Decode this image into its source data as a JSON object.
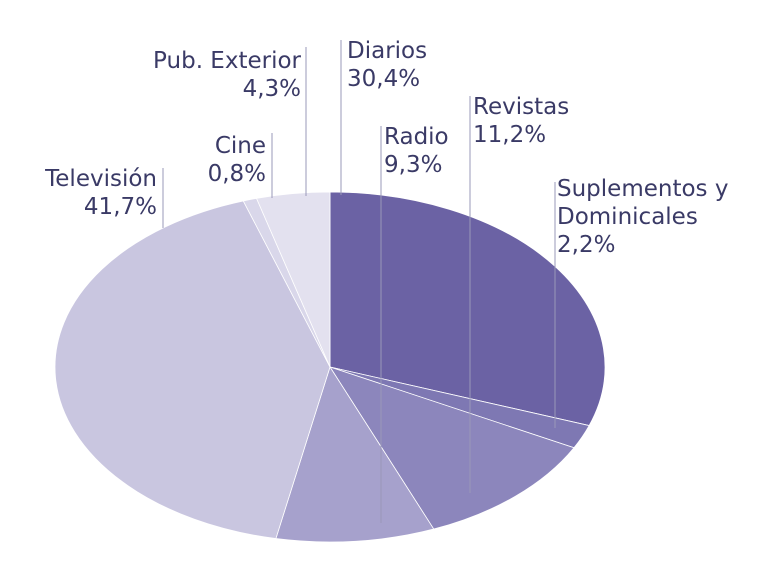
{
  "chart_data": {
    "type": "pie",
    "title": "",
    "slices": [
      {
        "label": [
          "Diarios"
        ],
        "value_text": "30,4%",
        "value": 30.4,
        "color": "#6b62a4"
      },
      {
        "label": [
          "Suplementos y",
          "Dominicales"
        ],
        "value_text": "2,2%",
        "value": 2.2,
        "color": "#7e78b3"
      },
      {
        "label": [
          "Revistas"
        ],
        "value_text": "11,2%",
        "value": 11.2,
        "color": "#8c86bc"
      },
      {
        "label": [
          "Radio"
        ],
        "value_text": "9,3%",
        "value": 9.3,
        "color": "#a6a1cc"
      },
      {
        "label": [
          "Televisión"
        ],
        "value_text": "41,7%",
        "value": 41.7,
        "color": "#c9c6e0"
      },
      {
        "label": [
          "Cine"
        ],
        "value_text": "0,8%",
        "value": 0.8,
        "color": "#d9d7ea"
      },
      {
        "label": [
          "Pub. Exterior"
        ],
        "value_text": "4,3%",
        "value": 4.3,
        "color": "#e3e1ef"
      }
    ]
  }
}
